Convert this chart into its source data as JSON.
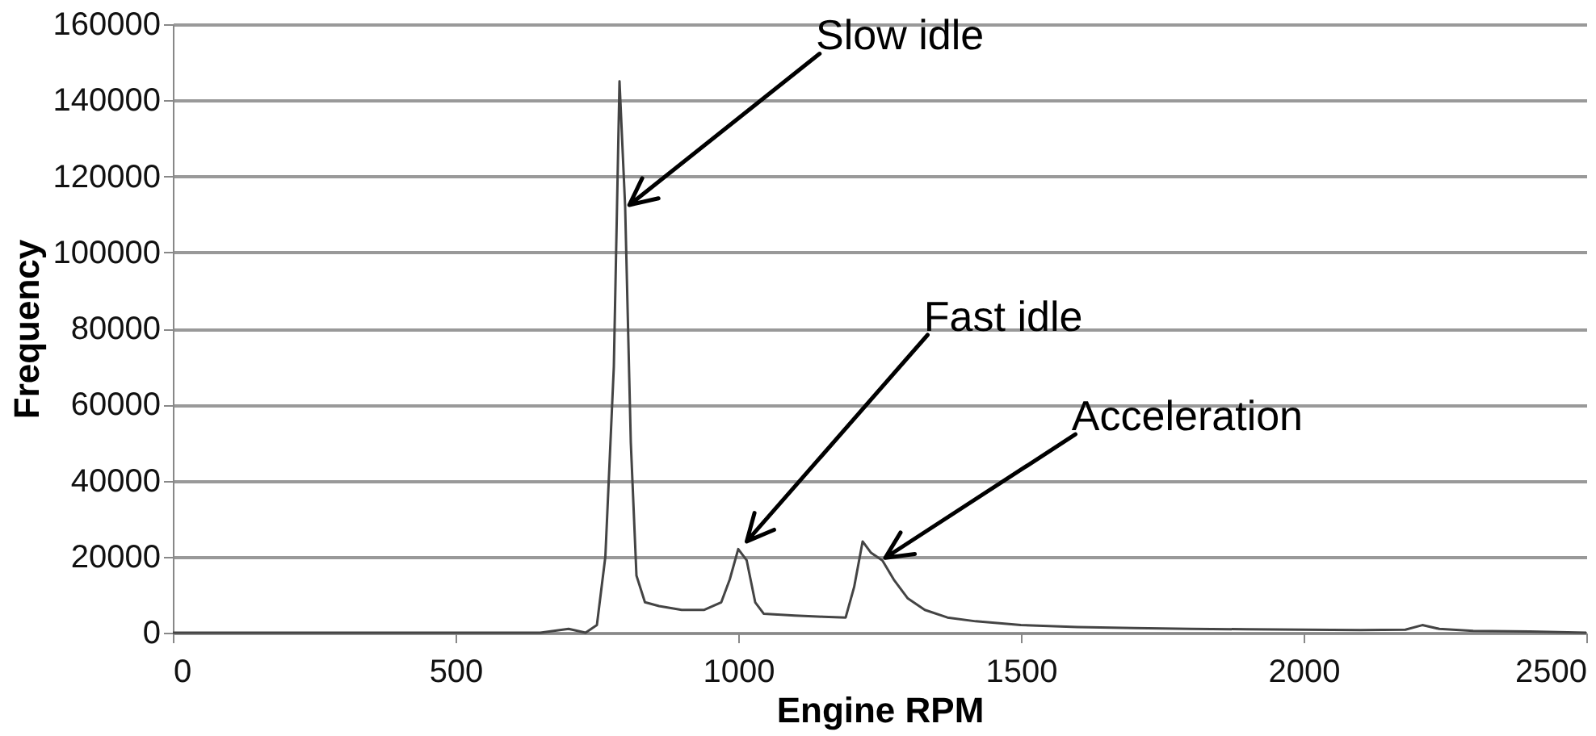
{
  "chart_data": {
    "type": "line",
    "xlabel": "Engine RPM",
    "ylabel": "Frequency",
    "xlim": [
      0,
      2500
    ],
    "xticks": [
      0,
      500,
      1000,
      1500,
      2000,
      2500
    ],
    "ylim": [
      0,
      160000
    ],
    "yticks": [
      0,
      20000,
      40000,
      60000,
      80000,
      100000,
      120000,
      140000,
      160000
    ],
    "grid": "y",
    "marker": "none",
    "line_style": "solid",
    "series": [
      {
        "color": "#444444",
        "x": [
          0,
          650,
          700,
          730,
          750,
          765,
          780,
          790,
          800,
          810,
          820,
          835,
          860,
          900,
          940,
          970,
          985,
          1000,
          1015,
          1030,
          1045,
          1100,
          1150,
          1190,
          1205,
          1220,
          1235,
          1255,
          1275,
          1300,
          1330,
          1370,
          1420,
          1500,
          1600,
          1700,
          1800,
          1900,
          2000,
          2100,
          2180,
          2210,
          2240,
          2300,
          2400,
          2500
        ],
        "values": [
          0,
          0,
          1000,
          0,
          2000,
          20000,
          70000,
          145000,
          112000,
          50000,
          15000,
          8000,
          7000,
          6000,
          6000,
          8000,
          14000,
          22000,
          19000,
          8000,
          5000,
          4500,
          4200,
          4000,
          12000,
          24000,
          21000,
          19000,
          14000,
          9000,
          6000,
          4000,
          3000,
          2000,
          1500,
          1200,
          1000,
          900,
          800,
          700,
          800,
          2000,
          1000,
          500,
          300,
          0
        ]
      }
    ],
    "annotations": [
      "Slow idle",
      "Fast idle",
      "Acceleration"
    ]
  }
}
